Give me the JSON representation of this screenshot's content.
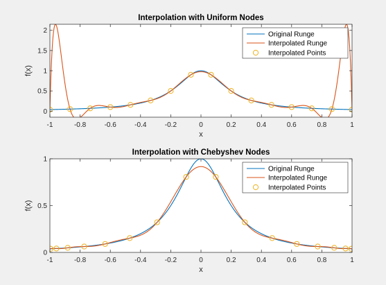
{
  "chart_data": [
    {
      "type": "line",
      "title": "Interpolation with Uniform Nodes",
      "xlabel": "x",
      "ylabel": "f(x)",
      "xlim": [
        -1,
        1
      ],
      "ylim": [
        -0.15,
        2.15
      ],
      "xticks": [
        "-1",
        "-0.8",
        "-0.6",
        "-0.4",
        "-0.2",
        "0",
        "0.2",
        "0.4",
        "0.6",
        "0.8",
        "1"
      ],
      "yticks": [
        "0",
        "0.5",
        "1",
        "1.5",
        "2"
      ],
      "legend_position": "top-right",
      "legend": [
        "Original Runge",
        "Interpolated Runge",
        "Interpolated Points"
      ],
      "node_count": 16,
      "node_type": "uniform",
      "function": "1/(1+25x^2)",
      "colors": {
        "original": "#0072BD",
        "interpolated": "#D95319",
        "points": "#EDB120"
      }
    },
    {
      "type": "line",
      "title": "Interpolation with Chebyshev Nodes",
      "xlabel": "x",
      "ylabel": "f(x)",
      "xlim": [
        -1,
        1
      ],
      "ylim": [
        0,
        1
      ],
      "xticks": [
        "-1",
        "-0.8",
        "-0.6",
        "-0.4",
        "-0.2",
        "0",
        "0.2",
        "0.4",
        "0.6",
        "0.8",
        "1"
      ],
      "yticks": [
        "0",
        "0.5",
        "1"
      ],
      "legend_position": "top-right",
      "legend": [
        "Original Runge",
        "Interpolated Runge",
        "Interpolated Points"
      ],
      "node_count": 16,
      "node_type": "chebyshev",
      "function": "1/(1+25x^2)",
      "colors": {
        "original": "#0072BD",
        "interpolated": "#D95319",
        "points": "#EDB120"
      }
    }
  ]
}
